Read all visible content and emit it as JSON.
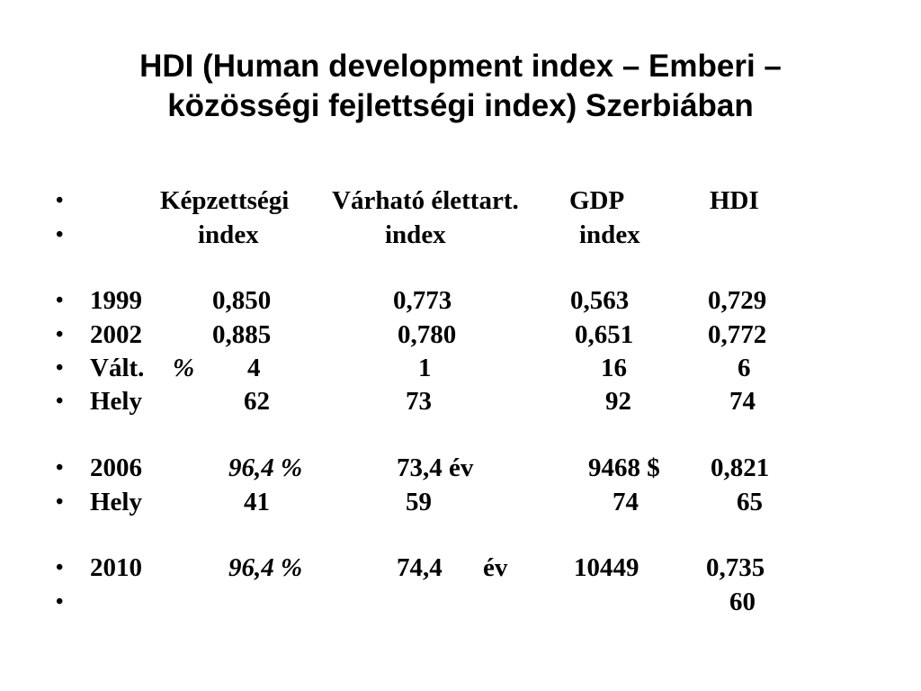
{
  "slide": {
    "title_line1": "HDI (Human development index – Emberi –",
    "title_line2": "közösségi fejlettségi index) Szerbiában",
    "bullet_symbol": "•",
    "rows": [
      [
        "",
        "Képzettségi",
        "Várható élettart.",
        "GDP",
        "HDI"
      ],
      [
        "",
        "index",
        "index",
        "index",
        ""
      ],
      null,
      [
        "1999",
        "0,850",
        "0,773",
        "0,563",
        "0,729"
      ],
      [
        "2002",
        "0,885",
        "0,780",
        "0,651",
        "0,772"
      ],
      [
        "Vált.",
        "%",
        "4",
        "1",
        "16",
        "6"
      ],
      [
        "Hely",
        "62",
        "73",
        "92",
        "74"
      ],
      null,
      [
        "2006",
        "96,4 %",
        "73,4 év",
        "9468 $",
        "0,821"
      ],
      [
        "Hely",
        "41",
        "59",
        "74",
        "65"
      ],
      null,
      [
        "2010",
        "96,4 %",
        "74,4",
        "év",
        "10449",
        "0,735"
      ],
      [
        "",
        "",
        "",
        "",
        "60"
      ]
    ]
  }
}
